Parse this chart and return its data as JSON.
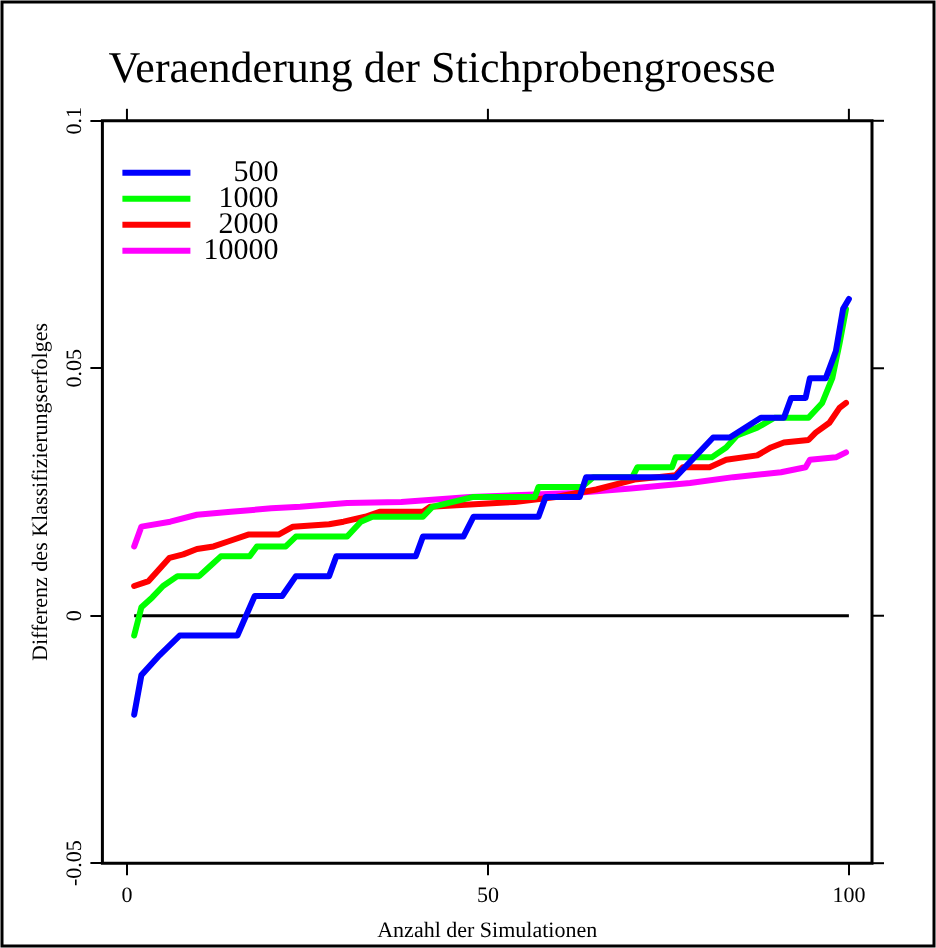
{
  "chart_data": {
    "type": "line",
    "title": "Veraenderung der Stichprobengroesse",
    "xlabel": "Anzahl der Simulationen",
    "ylabel": "Differenz des Klassifizierungserfolges",
    "xlim": [
      -3.4,
      103.2
    ],
    "ylim": [
      -0.05,
      0.1
    ],
    "xticks": [
      0,
      50,
      100
    ],
    "yticks": [
      -0.05,
      0,
      0.05,
      0.1
    ],
    "grid": false,
    "legend": "top left",
    "marker": "none",
    "line_style": "solid",
    "ref_lines": [
      {
        "axis": "y",
        "value": 0,
        "color": "#000000"
      }
    ],
    "series": [
      {
        "name": "500",
        "color": "#0000ff",
        "x": [
          1,
          2,
          4.5,
          7.3,
          15.3,
          17.7,
          21.5,
          23.4,
          28,
          29,
          40,
          41,
          46.6,
          48,
          57,
          58,
          62.7,
          63.6,
          76,
          81.2,
          83.5,
          87.8,
          91,
          92,
          94,
          94.6,
          96.8,
          98.2,
          99.2,
          100
        ],
        "values": [
          -0.02,
          -0.012,
          -0.008,
          -0.004,
          -0.004,
          0.004,
          0.004,
          0.008,
          0.008,
          0.012,
          0.012,
          0.016,
          0.016,
          0.02,
          0.02,
          0.024,
          0.024,
          0.028,
          0.028,
          0.036,
          0.036,
          0.04,
          0.04,
          0.044,
          0.044,
          0.048,
          0.048,
          0.0535,
          0.062,
          0.064
        ]
      },
      {
        "name": "1000",
        "color": "#00ff00",
        "x": [
          1,
          2,
          3.5,
          5,
          7,
          10,
          11.5,
          13,
          17,
          18,
          22,
          23.4,
          30.5,
          32.4,
          34,
          41,
          42.3,
          48,
          56.5,
          57,
          63,
          64.6,
          70,
          70.7,
          75.5,
          76,
          81,
          83,
          84.5,
          87.3,
          89.7,
          94.4,
          96.3,
          97.7,
          98.7,
          99.6
        ],
        "values": [
          -0.004,
          0.0017,
          0.0037,
          0.006,
          0.008,
          0.008,
          0.01,
          0.012,
          0.012,
          0.014,
          0.014,
          0.016,
          0.016,
          0.019,
          0.02,
          0.02,
          0.022,
          0.024,
          0.024,
          0.026,
          0.026,
          0.028,
          0.028,
          0.03,
          0.03,
          0.032,
          0.032,
          0.034,
          0.0364,
          0.038,
          0.04,
          0.04,
          0.043,
          0.048,
          0.055,
          0.062
        ]
      },
      {
        "name": "2000",
        "color": "#ff0000",
        "x": [
          1,
          3,
          5.9,
          7.8,
          9.7,
          12,
          14,
          16.8,
          21,
          23,
          28,
          30,
          33,
          35,
          41,
          42,
          53.7,
          59.4,
          65,
          70.3,
          76,
          77,
          80.7,
          83,
          87.3,
          89.2,
          91,
          94.4,
          95.4,
          97.3,
          98.7,
          99.6
        ],
        "values": [
          0.006,
          0.007,
          0.0117,
          0.0124,
          0.0135,
          0.014,
          0.015,
          0.0164,
          0.0164,
          0.018,
          0.0185,
          0.019,
          0.02,
          0.021,
          0.021,
          0.022,
          0.023,
          0.024,
          0.0255,
          0.0275,
          0.0284,
          0.03,
          0.03,
          0.0315,
          0.0324,
          0.034,
          0.035,
          0.0355,
          0.037,
          0.039,
          0.042,
          0.043
        ]
      },
      {
        "name": "10000",
        "color": "#ff00ff",
        "x": [
          1,
          2,
          6,
          9.7,
          14.4,
          20,
          24,
          30.5,
          38,
          47.5,
          62,
          69.8,
          78,
          84,
          90.6,
          94,
          94.6,
          98.2,
          99.6
        ],
        "values": [
          0.014,
          0.018,
          0.019,
          0.0204,
          0.021,
          0.0217,
          0.022,
          0.0228,
          0.023,
          0.024,
          0.0248,
          0.0257,
          0.0268,
          0.028,
          0.029,
          0.03,
          0.0315,
          0.032,
          0.033
        ]
      }
    ]
  }
}
